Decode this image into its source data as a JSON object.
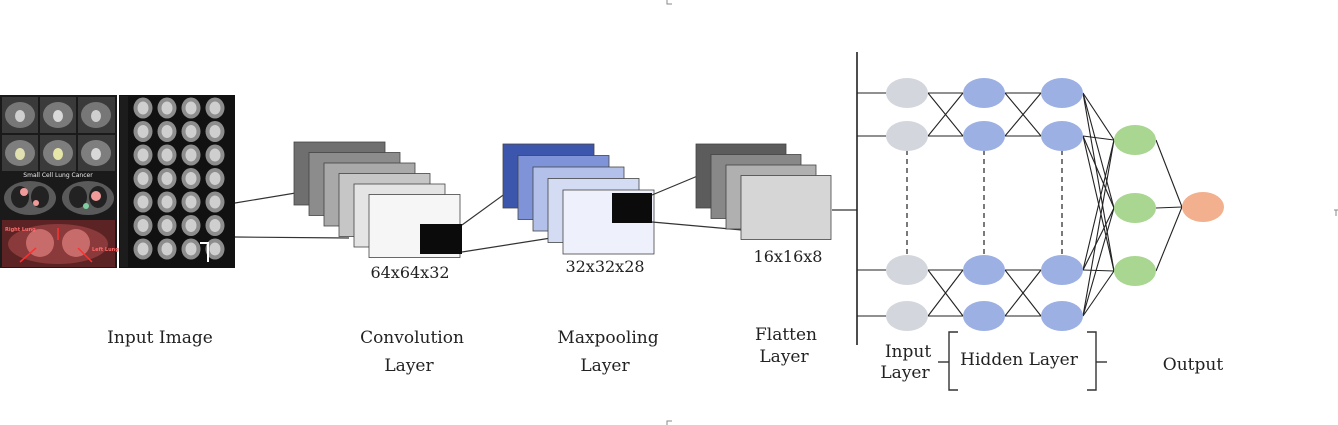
{
  "diagram": {
    "input_image": {
      "label": "Input Image",
      "scan_text": {
        "title": "Small Cell Lung Cancer",
        "right": "Right Lung",
        "left": "Left Lung"
      }
    },
    "convolution": {
      "label_line1": "Convolution",
      "label_line2": "Layer",
      "dims": "64x64x32"
    },
    "maxpooling": {
      "label_line1": "Maxpooling",
      "label_line2": "Layer",
      "dims": "32x32x28"
    },
    "flatten": {
      "label_line1": "Flatten",
      "label_line2": "Layer",
      "dims": "16x16x8"
    },
    "network": {
      "input_label_line1": "Input",
      "input_label_line2": "Layer",
      "hidden_label": "Hidden Layer",
      "output_label": "Output"
    },
    "colors": {
      "input_node": "#d3d6dc",
      "hidden_node": "#9cb0e4",
      "output_node_green": "#a9d690",
      "final_node": "#f2b08e",
      "conv_stack": [
        "#6f6f6f",
        "#8c8c8c",
        "#a9a9a9",
        "#c6c6c6",
        "#e4e4e4",
        "#f6f6f6"
      ],
      "pool_stack": [
        "#3d56ad",
        "#7f94d8",
        "#b2c0ea",
        "#d4dcf4",
        "#eef1fb"
      ],
      "flat_stack": [
        "#5c5c5c",
        "#888888",
        "#b0b0b0",
        "#d6d6d6"
      ]
    }
  }
}
